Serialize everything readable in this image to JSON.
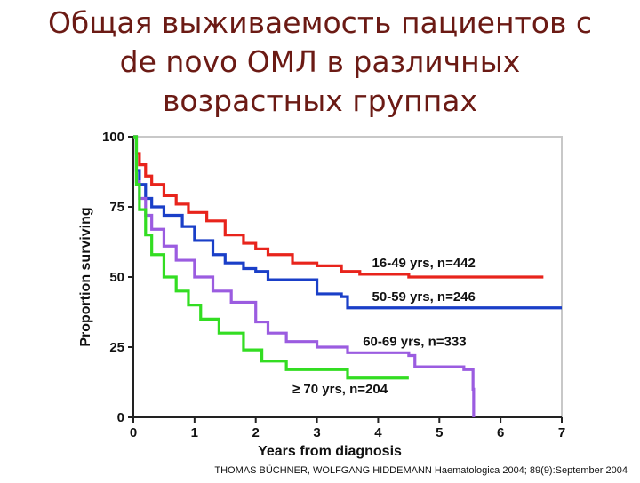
{
  "slide": {
    "title_lines": [
      "Общая выживаемость  пациентов с",
      "de novo ОМЛ в различных",
      "возрастных группах"
    ],
    "citation": "THOMAS BÜCHNER, WOLFGANG HIDDEMANN Haematologica 2004; 89(9):September 2004"
  },
  "colors": {
    "title": "#6b1a14",
    "series_16_49": "#e8241c",
    "series_50_59": "#1a3fc8",
    "series_60_69": "#9b5ce0",
    "series_70plus": "#33dd22"
  },
  "chart_data": {
    "type": "line",
    "step": true,
    "xlabel": "Years from diagnosis",
    "ylabel": "Proportion surviving",
    "xlim": [
      0,
      7
    ],
    "ylim": [
      0,
      100
    ],
    "xticks": [
      "0",
      "1",
      "2",
      "3",
      "4",
      "5",
      "6",
      "7"
    ],
    "yticks": [
      "0",
      "25",
      "50",
      "75",
      "100"
    ],
    "grid": false,
    "series": [
      {
        "name": "16-49 yrs, n=442",
        "color": "#e8241c",
        "x": [
          0,
          0.05,
          0.1,
          0.2,
          0.3,
          0.5,
          0.7,
          0.9,
          1.2,
          1.5,
          1.8,
          2.0,
          2.2,
          2.6,
          3.0,
          3.4,
          3.7,
          4.0,
          4.5,
          5.0,
          6.0,
          6.7
        ],
        "y": [
          100,
          94,
          90,
          86,
          83,
          79,
          76,
          73,
          70,
          65,
          62,
          60,
          58,
          55,
          54,
          52,
          51,
          51,
          50,
          50,
          50,
          50
        ]
      },
      {
        "name": "50-59 yrs, n=246",
        "color": "#1a3fc8",
        "x": [
          0,
          0.05,
          0.1,
          0.2,
          0.3,
          0.5,
          0.8,
          1.0,
          1.3,
          1.5,
          1.8,
          2.0,
          2.2,
          3.0,
          3.4,
          3.5,
          4.5,
          5.5,
          7.0
        ],
        "y": [
          100,
          88,
          83,
          78,
          75,
          72,
          68,
          63,
          58,
          55,
          53,
          52,
          49,
          44,
          43,
          39,
          39,
          39,
          39
        ]
      },
      {
        "name": "60-69 yrs, n=333",
        "color": "#9b5ce0",
        "x": [
          0,
          0.05,
          0.1,
          0.2,
          0.3,
          0.5,
          0.7,
          1.0,
          1.3,
          1.6,
          2.0,
          2.2,
          2.5,
          3.0,
          3.5,
          4.5,
          4.6,
          5.0,
          5.4,
          5.55,
          5.56
        ],
        "y": [
          100,
          84,
          78,
          72,
          67,
          61,
          56,
          50,
          45,
          41,
          34,
          30,
          27,
          25,
          23,
          22,
          18,
          18,
          17,
          10,
          0
        ]
      },
      {
        "name": "≥ 70 yrs, n=204",
        "color": "#33dd22",
        "x": [
          0,
          0.05,
          0.1,
          0.2,
          0.3,
          0.5,
          0.7,
          0.9,
          1.1,
          1.4,
          1.8,
          2.1,
          2.5,
          3.0,
          3.5,
          4.5
        ],
        "y": [
          100,
          83,
          74,
          65,
          58,
          50,
          45,
          40,
          35,
          30,
          24,
          20,
          17,
          17,
          14,
          14
        ]
      }
    ]
  }
}
